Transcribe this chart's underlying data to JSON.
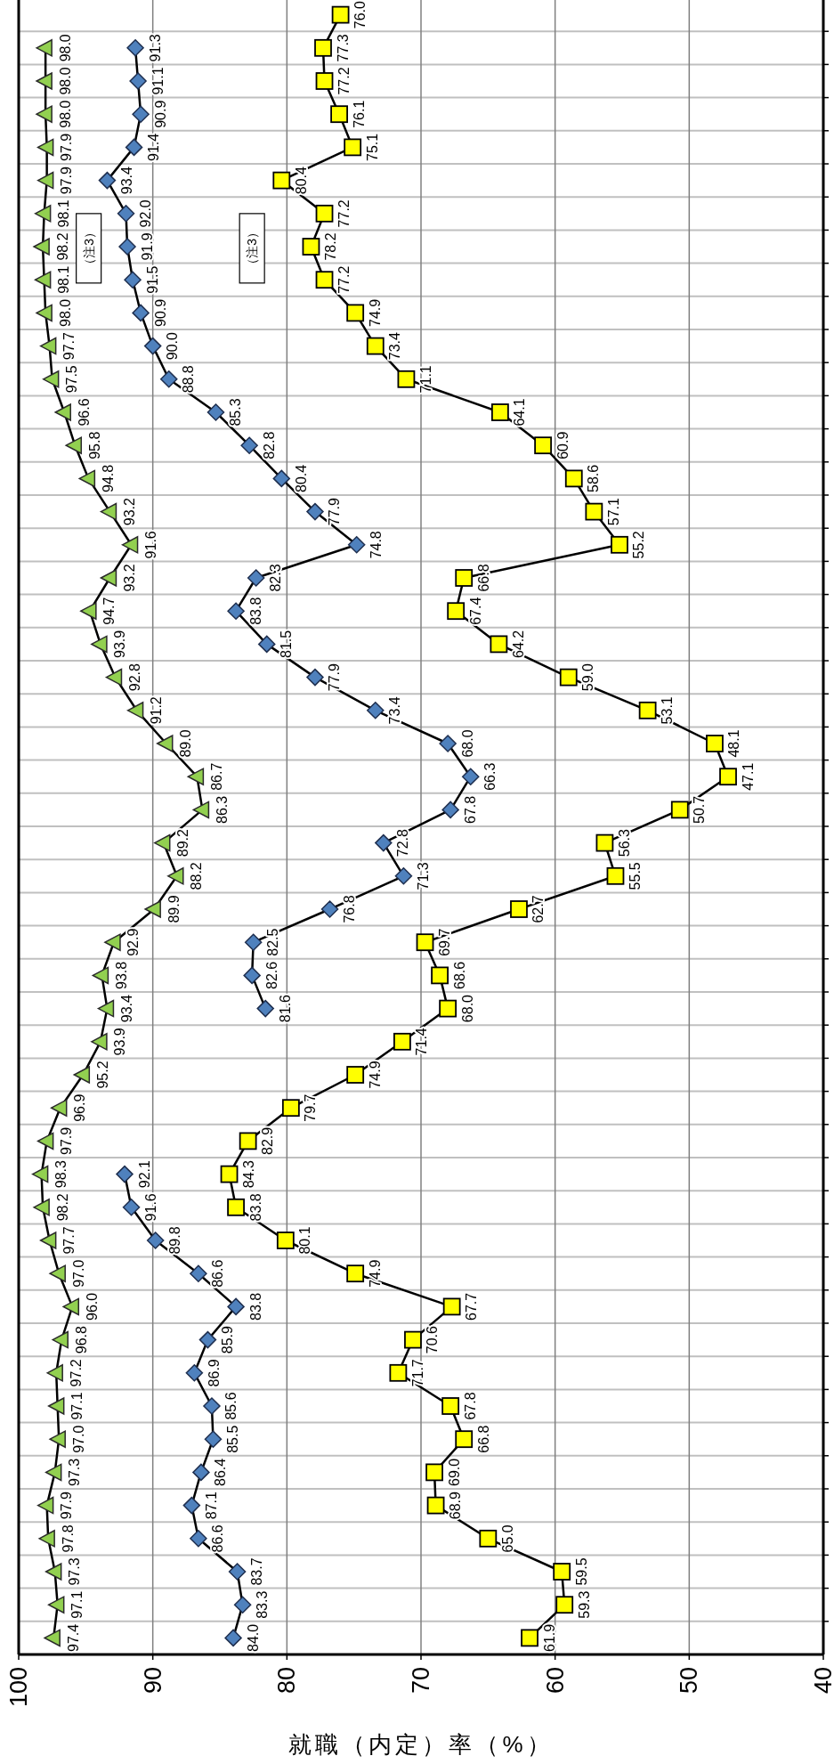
{
  "chart_data": {
    "type": "line",
    "orientation": "horizontal",
    "xlabel": "就職（内定）率（%）",
    "categories": [
      null,
      null,
      null,
      null,
      null,
      null,
      null,
      null,
      null,
      null,
      null,
      null,
      null,
      null,
      null,
      null,
      null,
      null,
      null,
      null,
      null,
      null,
      null,
      null,
      null,
      null,
      null,
      null,
      null,
      null,
      null,
      null,
      null,
      null,
      null,
      null,
      null,
      null,
      null,
      null,
      null,
      null,
      null,
      null,
      null,
      null,
      null,
      null,
      null,
      null
    ],
    "xlim": [
      100,
      40
    ],
    "xticks": [
      100,
      90,
      80,
      70,
      60,
      50,
      40
    ],
    "grid": true,
    "line_style": "solid",
    "annotations": [
      "（注3）",
      "（注3）"
    ],
    "series": [
      {
        "color": "#92d050",
        "marker": "triangle",
        "values": [
          null,
          98.0,
          98.0,
          98.0,
          97.9,
          97.9,
          98.1,
          98.2,
          98.1,
          98.0,
          97.7,
          97.5,
          96.6,
          95.8,
          94.8,
          93.2,
          91.6,
          93.2,
          94.7,
          93.9,
          92.8,
          91.2,
          89.0,
          86.7,
          86.3,
          89.2,
          88.2,
          89.9,
          92.9,
          93.8,
          93.4,
          93.9,
          95.2,
          96.9,
          97.9,
          98.3,
          98.2,
          97.7,
          97.0,
          96.0,
          96.8,
          97.2,
          97.1,
          97.0,
          97.3,
          97.9,
          97.8,
          97.3,
          97.1,
          97.4
        ],
        "value_labels": [
          null,
          "98.0",
          "98.0",
          "98.0",
          "97.9",
          "97.9",
          "98.1",
          "98.2",
          "98.1",
          "98.0",
          "97.7",
          "97.5",
          "96.6",
          "95.8",
          "94.8",
          "93.2",
          "91.6",
          "93.2",
          "94.7",
          "93.9",
          "92.8",
          "91.2",
          "89.0",
          "86.7",
          "86.3",
          "89.2",
          "88.2",
          "89.9",
          "92.9",
          "93.8",
          "93.4",
          "93.9",
          "95.2",
          "96.9",
          "97.9",
          "98.3",
          "98.2",
          "97.7",
          "97.0",
          "96.0",
          "96.8",
          "97.2",
          "97.1",
          "97.0",
          "97.3",
          "97.9",
          "97.8",
          "97.3",
          "97.1",
          "97.4"
        ]
      },
      {
        "color": "#4f81bd",
        "marker": "diamond",
        "values": [
          null,
          91.3,
          91.1,
          90.9,
          91.4,
          93.4,
          92.0,
          91.9,
          91.5,
          90.9,
          90.0,
          88.8,
          85.3,
          82.8,
          80.4,
          77.9,
          74.8,
          82.3,
          83.8,
          81.5,
          77.9,
          73.4,
          68.0,
          66.3,
          67.8,
          72.8,
          71.3,
          76.8,
          82.5,
          82.6,
          81.6,
          null,
          null,
          null,
          null,
          92.1,
          91.6,
          89.8,
          86.6,
          83.8,
          85.9,
          86.9,
          85.6,
          85.5,
          86.4,
          87.1,
          86.6,
          83.7,
          83.3,
          84.0
        ],
        "value_labels": [
          null,
          "91.3",
          "91.1",
          "90.9",
          "91.4",
          "93.4",
          "92.0",
          "91.9",
          "91.5",
          "90.9",
          "90.0",
          "88.8",
          "85.3",
          "82.8",
          "80.4",
          "77.9",
          "74.8",
          "82.3",
          "83.8",
          "81.5",
          "77.9",
          "73.4",
          "68.0",
          "66.3",
          "67.8",
          "72.8",
          "71.3",
          "76.8",
          "82.5",
          "82.6",
          "81.6",
          null,
          null,
          null,
          null,
          "92.1",
          "91.6",
          "89.8",
          "86.6",
          "83.8",
          "85.9",
          "86.9",
          "85.6",
          "85.5",
          "86.4",
          "87.1",
          "86.6",
          "83.7",
          "83.3",
          "84.0"
        ]
      },
      {
        "color": "#ffff00",
        "marker": "square",
        "values": [
          76.0,
          77.3,
          77.2,
          76.1,
          75.1,
          80.4,
          77.2,
          78.2,
          77.2,
          74.9,
          73.4,
          71.1,
          64.1,
          60.9,
          58.6,
          57.1,
          55.2,
          66.8,
          67.4,
          64.2,
          59.0,
          53.1,
          48.1,
          47.1,
          50.7,
          56.3,
          55.5,
          62.7,
          69.7,
          68.6,
          68.0,
          71.4,
          74.9,
          79.7,
          82.9,
          84.3,
          83.8,
          80.1,
          74.9,
          67.7,
          70.6,
          71.7,
          67.8,
          66.8,
          69.0,
          68.9,
          65.0,
          59.5,
          59.3,
          61.9
        ],
        "value_labels": [
          "76.0",
          "77.3",
          "77.2",
          "76.1",
          "75.1",
          "80.4",
          "77.2",
          "78.2",
          "77.2",
          "74.9",
          "73.4",
          "71.1",
          "64.1",
          "60.9",
          "58.6",
          "57.1",
          "55.2",
          "66.8",
          "67.4",
          "64.2",
          "59.0",
          "53.1",
          "48.1",
          "47.1",
          "50.7",
          "56.3",
          "55.5",
          "62.7",
          "69.7",
          "68.6",
          "68.0",
          "71.4",
          "74.9",
          "79.7",
          "82.9",
          "84.3",
          "83.8",
          "80.1",
          "74.9",
          "67.7",
          "70.6",
          "71.7",
          "67.8",
          "66.8",
          "69.0",
          "68.9",
          "65.0",
          "59.5",
          "59.3",
          "61.9"
        ]
      }
    ]
  }
}
